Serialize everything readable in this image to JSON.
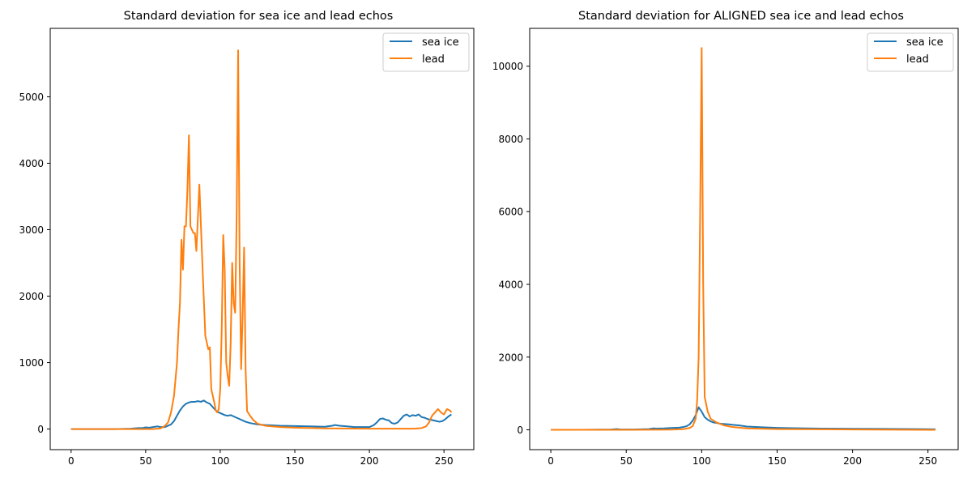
{
  "chart_data": [
    {
      "type": "line",
      "title": "Standard deviation for sea ice and lead echos",
      "xlim": [
        -14,
        270
      ],
      "ylim": [
        -310,
        6030
      ],
      "xticks": [
        0,
        50,
        100,
        150,
        200,
        250
      ],
      "xtick_labels": [
        "0",
        "50",
        "100",
        "150",
        "200",
        "250"
      ],
      "yticks": [
        0,
        1000,
        2000,
        3000,
        4000,
        5000
      ],
      "ytick_labels": [
        "0",
        "1000",
        "2000",
        "3000",
        "4000",
        "5000"
      ],
      "legend": {
        "placement": "top-right",
        "entries": [
          "sea ice",
          "lead"
        ]
      },
      "grid": false,
      "series": [
        {
          "name": "sea ice",
          "color": "#1f77b4",
          "points": [
            [
              0,
              0
            ],
            [
              10,
              0
            ],
            [
              20,
              0
            ],
            [
              30,
              0
            ],
            [
              40,
              5
            ],
            [
              45,
              15
            ],
            [
              48,
              15
            ],
            [
              50,
              25
            ],
            [
              52,
              20
            ],
            [
              55,
              30
            ],
            [
              58,
              40
            ],
            [
              60,
              30
            ],
            [
              63,
              30
            ],
            [
              65,
              50
            ],
            [
              67,
              70
            ],
            [
              69,
              120
            ],
            [
              71,
              200
            ],
            [
              73,
              280
            ],
            [
              75,
              340
            ],
            [
              77,
              380
            ],
            [
              79,
              400
            ],
            [
              81,
              410
            ],
            [
              83,
              410
            ],
            [
              85,
              420
            ],
            [
              87,
              410
            ],
            [
              89,
              430
            ],
            [
              91,
              400
            ],
            [
              93,
              380
            ],
            [
              95,
              330
            ],
            [
              97,
              280
            ],
            [
              99,
              250
            ],
            [
              101,
              230
            ],
            [
              103,
              210
            ],
            [
              105,
              200
            ],
            [
              107,
              210
            ],
            [
              109,
              190
            ],
            [
              111,
              170
            ],
            [
              113,
              150
            ],
            [
              115,
              130
            ],
            [
              117,
              110
            ],
            [
              120,
              90
            ],
            [
              125,
              70
            ],
            [
              130,
              60
            ],
            [
              135,
              55
            ],
            [
              140,
              50
            ],
            [
              150,
              45
            ],
            [
              160,
              40
            ],
            [
              170,
              35
            ],
            [
              175,
              50
            ],
            [
              177,
              60
            ],
            [
              180,
              50
            ],
            [
              185,
              40
            ],
            [
              190,
              30
            ],
            [
              200,
              30
            ],
            [
              203,
              60
            ],
            [
              205,
              100
            ],
            [
              207,
              150
            ],
            [
              209,
              160
            ],
            [
              211,
              140
            ],
            [
              213,
              130
            ],
            [
              215,
              90
            ],
            [
              217,
              80
            ],
            [
              219,
              100
            ],
            [
              221,
              150
            ],
            [
              223,
              200
            ],
            [
              225,
              220
            ],
            [
              227,
              190
            ],
            [
              229,
              210
            ],
            [
              231,
              200
            ],
            [
              233,
              220
            ],
            [
              235,
              180
            ],
            [
              237,
              170
            ],
            [
              239,
              150
            ],
            [
              241,
              140
            ],
            [
              243,
              130
            ],
            [
              245,
              120
            ],
            [
              247,
              110
            ],
            [
              249,
              120
            ],
            [
              251,
              150
            ],
            [
              253,
              190
            ],
            [
              255,
              220
            ]
          ]
        },
        {
          "name": "lead",
          "color": "#ff7f0e",
          "points": [
            [
              0,
              0
            ],
            [
              20,
              0
            ],
            [
              40,
              0
            ],
            [
              55,
              0
            ],
            [
              60,
              10
            ],
            [
              63,
              50
            ],
            [
              65,
              100
            ],
            [
              67,
              250
            ],
            [
              69,
              500
            ],
            [
              71,
              1000
            ],
            [
              72,
              1500
            ],
            [
              73,
              1900
            ],
            [
              74,
              2850
            ],
            [
              75,
              2400
            ],
            [
              76,
              3050
            ],
            [
              77,
              3050
            ],
            [
              78,
              3600
            ],
            [
              79,
              4420
            ],
            [
              80,
              3050
            ],
            [
              81,
              3000
            ],
            [
              82,
              2950
            ],
            [
              83,
              2950
            ],
            [
              84,
              2680
            ],
            [
              86,
              3680
            ],
            [
              88,
              2500
            ],
            [
              90,
              1400
            ],
            [
              91,
              1300
            ],
            [
              92,
              1200
            ],
            [
              93,
              1230
            ],
            [
              94,
              600
            ],
            [
              96,
              400
            ],
            [
              97,
              280
            ],
            [
              98,
              250
            ],
            [
              99,
              300
            ],
            [
              100,
              600
            ],
            [
              101,
              1500
            ],
            [
              102,
              2920
            ],
            [
              103,
              2400
            ],
            [
              104,
              1000
            ],
            [
              105,
              800
            ],
            [
              106,
              650
            ],
            [
              107,
              1300
            ],
            [
              108,
              2500
            ],
            [
              109,
              1900
            ],
            [
              110,
              1750
            ],
            [
              111,
              3200
            ],
            [
              112,
              5700
            ],
            [
              113,
              2500
            ],
            [
              114,
              900
            ],
            [
              115,
              1700
            ],
            [
              116,
              2730
            ],
            [
              117,
              900
            ],
            [
              118,
              270
            ],
            [
              120,
              200
            ],
            [
              122,
              140
            ],
            [
              125,
              80
            ],
            [
              130,
              50
            ],
            [
              140,
              30
            ],
            [
              150,
              20
            ],
            [
              170,
              10
            ],
            [
              200,
              5
            ],
            [
              230,
              5
            ],
            [
              235,
              15
            ],
            [
              238,
              40
            ],
            [
              240,
              100
            ],
            [
              242,
              200
            ],
            [
              244,
              250
            ],
            [
              246,
              300
            ],
            [
              248,
              250
            ],
            [
              250,
              220
            ],
            [
              252,
              300
            ],
            [
              254,
              280
            ],
            [
              255,
              250
            ]
          ]
        }
      ]
    },
    {
      "type": "line",
      "title": "Standard deviation for ALIGNED sea ice and lead echos",
      "xlim": [
        -14,
        270
      ],
      "ylim": [
        -545,
        11040
      ],
      "xticks": [
        0,
        50,
        100,
        150,
        200,
        250
      ],
      "xtick_labels": [
        "0",
        "50",
        "100",
        "150",
        "200",
        "250"
      ],
      "yticks": [
        0,
        2000,
        4000,
        6000,
        8000,
        10000
      ],
      "ytick_labels": [
        "0",
        "2000",
        "4000",
        "6000",
        "8000",
        "10000"
      ],
      "legend": {
        "placement": "top-right",
        "entries": [
          "sea ice",
          "lead"
        ]
      },
      "grid": false,
      "series": [
        {
          "name": "sea ice",
          "color": "#1f77b4",
          "points": [
            [
              0,
              0
            ],
            [
              20,
              0
            ],
            [
              40,
              10
            ],
            [
              44,
              20
            ],
            [
              46,
              10
            ],
            [
              50,
              10
            ],
            [
              55,
              10
            ],
            [
              60,
              15
            ],
            [
              65,
              20
            ],
            [
              68,
              40
            ],
            [
              70,
              35
            ],
            [
              75,
              40
            ],
            [
              80,
              50
            ],
            [
              85,
              60
            ],
            [
              88,
              80
            ],
            [
              90,
              100
            ],
            [
              92,
              150
            ],
            [
              94,
              250
            ],
            [
              96,
              400
            ],
            [
              98,
              620
            ],
            [
              100,
              500
            ],
            [
              102,
              350
            ],
            [
              104,
              280
            ],
            [
              106,
              230
            ],
            [
              108,
              200
            ],
            [
              110,
              190
            ],
            [
              112,
              170
            ],
            [
              115,
              160
            ],
            [
              118,
              150
            ],
            [
              120,
              140
            ],
            [
              125,
              120
            ],
            [
              130,
              90
            ],
            [
              140,
              70
            ],
            [
              150,
              55
            ],
            [
              160,
              45
            ],
            [
              170,
              40
            ],
            [
              180,
              35
            ],
            [
              200,
              30
            ],
            [
              220,
              25
            ],
            [
              240,
              20
            ],
            [
              255,
              15
            ]
          ]
        },
        {
          "name": "lead",
          "color": "#ff7f0e",
          "points": [
            [
              0,
              0
            ],
            [
              50,
              0
            ],
            [
              80,
              5
            ],
            [
              88,
              20
            ],
            [
              92,
              50
            ],
            [
              94,
              100
            ],
            [
              96,
              300
            ],
            [
              97,
              800
            ],
            [
              98,
              2000
            ],
            [
              99,
              6000
            ],
            [
              100,
              10500
            ],
            [
              101,
              4000
            ],
            [
              102,
              900
            ],
            [
              104,
              500
            ],
            [
              106,
              300
            ],
            [
              110,
              200
            ],
            [
              115,
              120
            ],
            [
              120,
              80
            ],
            [
              130,
              40
            ],
            [
              150,
              20
            ],
            [
              200,
              10
            ],
            [
              255,
              0
            ]
          ]
        }
      ]
    }
  ]
}
